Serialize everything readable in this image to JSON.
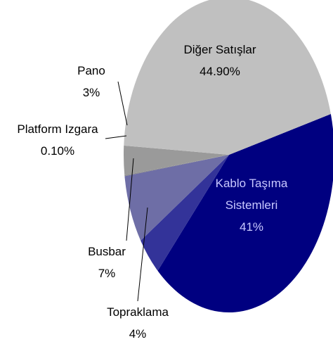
{
  "chart_data": {
    "type": "pie",
    "categories": [
      "Kablo Taşıma Sistemleri",
      "Topraklama",
      "Busbar",
      "Platform Izgara",
      "Pano",
      "Diğer Satışlar"
    ],
    "values": [
      41,
      4,
      7,
      0.1,
      3,
      44.9
    ],
    "value_labels": [
      "41%",
      "4%",
      "7%",
      "0.10%",
      "3%",
      "44.90%"
    ],
    "colors": [
      "#000080",
      "#333399",
      "#6e6ea6",
      "#8a8a8a",
      "#9a9a9a",
      "#c0c0c0"
    ]
  }
}
